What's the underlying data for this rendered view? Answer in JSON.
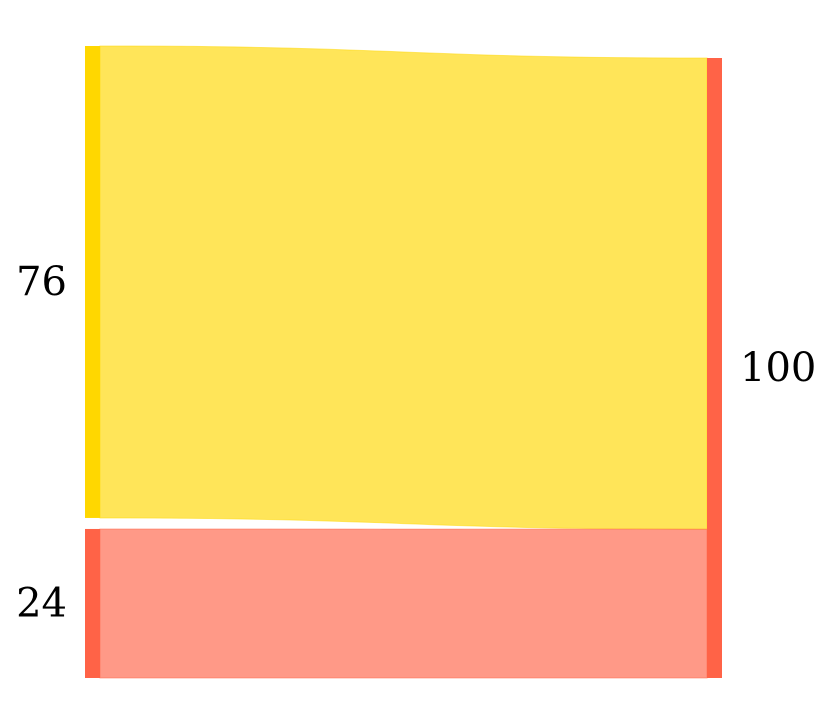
{
  "chart_data": {
    "type": "sankey",
    "nodes": [
      {
        "id": "left-top",
        "side": "left",
        "label": "76",
        "value": 76,
        "color": "#FFD700"
      },
      {
        "id": "left-bottom",
        "side": "left",
        "label": "24",
        "value": 24,
        "color": "#FF6347"
      },
      {
        "id": "right",
        "side": "right",
        "label": "100",
        "value": 100,
        "color": "#FF6347"
      }
    ],
    "links": [
      {
        "source": "left-top",
        "target": "right",
        "value": 76,
        "color": "#FFD700"
      },
      {
        "source": "left-bottom",
        "target": "right",
        "value": 24,
        "color": "#FF6347"
      }
    ]
  }
}
